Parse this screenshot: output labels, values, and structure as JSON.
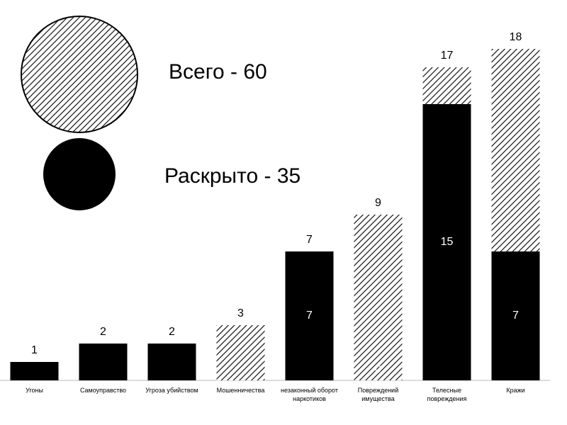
{
  "chart_data": {
    "type": "overlap_bar",
    "categories": [
      "Угоны",
      "Самоуправство",
      "Угроза убийством",
      "Мошенничества",
      "незаконный оборот наркотиков",
      "Повреждений имущества",
      "Телесные повреждения",
      "Кражи"
    ],
    "series": [
      {
        "name": "Всего - 60",
        "color": "#000000",
        "pattern": "hatch",
        "values": [
          1,
          2,
          2,
          3,
          7,
          9,
          17,
          18
        ]
      },
      {
        "name": "Раскрыто - 35",
        "color": "#000000",
        "pattern": "solid",
        "values": [
          1,
          2,
          2,
          0,
          7,
          0,
          15,
          7
        ],
        "value_labels": [
          null,
          null,
          null,
          null,
          "7",
          "0",
          "15",
          "7"
        ]
      }
    ],
    "ylim": [
      0,
      18
    ]
  }
}
